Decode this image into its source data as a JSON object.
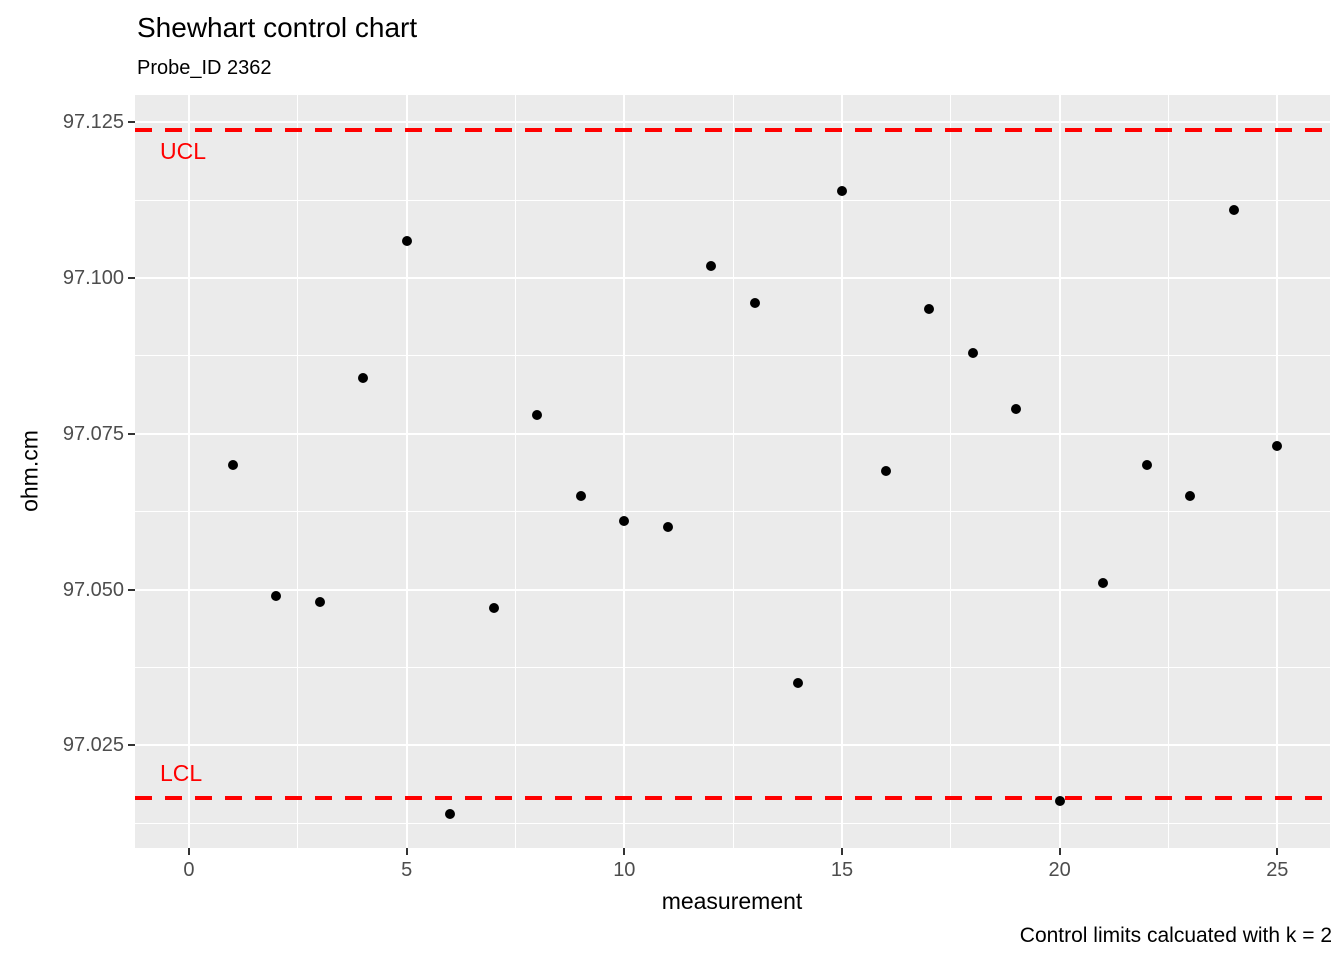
{
  "colors": {
    "panel_bg": "#EBEBEB",
    "grid": "#FFFFFF",
    "point": "#000000",
    "control_line": "#FF0000",
    "control_label": "#FF0000",
    "axis_text": "#4D4D4D",
    "tick_mark": "#333333",
    "title_text": "#000000"
  },
  "chart_data": {
    "type": "scatter",
    "title": "Shewhart control chart",
    "subtitle": "Probe_ID 2362",
    "xlabel": "measurement",
    "ylabel": "ohm.cm",
    "caption": "Control limits calcuated with k = 2",
    "x": [
      1,
      2,
      3,
      4,
      5,
      6,
      7,
      8,
      9,
      10,
      11,
      12,
      13,
      14,
      15,
      16,
      17,
      18,
      19,
      20,
      21,
      22,
      23,
      24,
      25
    ],
    "y": [
      97.07,
      97.049,
      97.048,
      97.084,
      97.106,
      97.014,
      97.047,
      97.078,
      97.065,
      97.061,
      97.06,
      97.102,
      97.096,
      97.035,
      97.114,
      97.069,
      97.095,
      97.088,
      97.079,
      97.016,
      97.051,
      97.07,
      97.065,
      97.111,
      97.073
    ],
    "xlim": [
      -1.24,
      26.21
    ],
    "ylim": [
      97.0085,
      97.1294
    ],
    "x_ticks": [
      0,
      5,
      10,
      15,
      20,
      25
    ],
    "x_tick_labels": [
      "0",
      "5",
      "10",
      "15",
      "20",
      "25"
    ],
    "x_minor_breaks": [
      2.5,
      7.5,
      12.5,
      17.5,
      22.5
    ],
    "y_ticks": [
      97.125,
      97.1,
      97.075,
      97.05,
      97.025
    ],
    "y_tick_labels": [
      "97.125",
      "97.100",
      "97.075",
      "97.050",
      "97.025"
    ],
    "y_minor_breaks": [
      97.1125,
      97.0875,
      97.0625,
      97.0375,
      97.0125
    ],
    "grid": true,
    "legend_position": "none",
    "control_limits": {
      "ucl": {
        "label": "UCL",
        "value": 97.1238
      },
      "lcl": {
        "label": "LCL",
        "value": 97.0166
      },
      "k": 2
    }
  }
}
